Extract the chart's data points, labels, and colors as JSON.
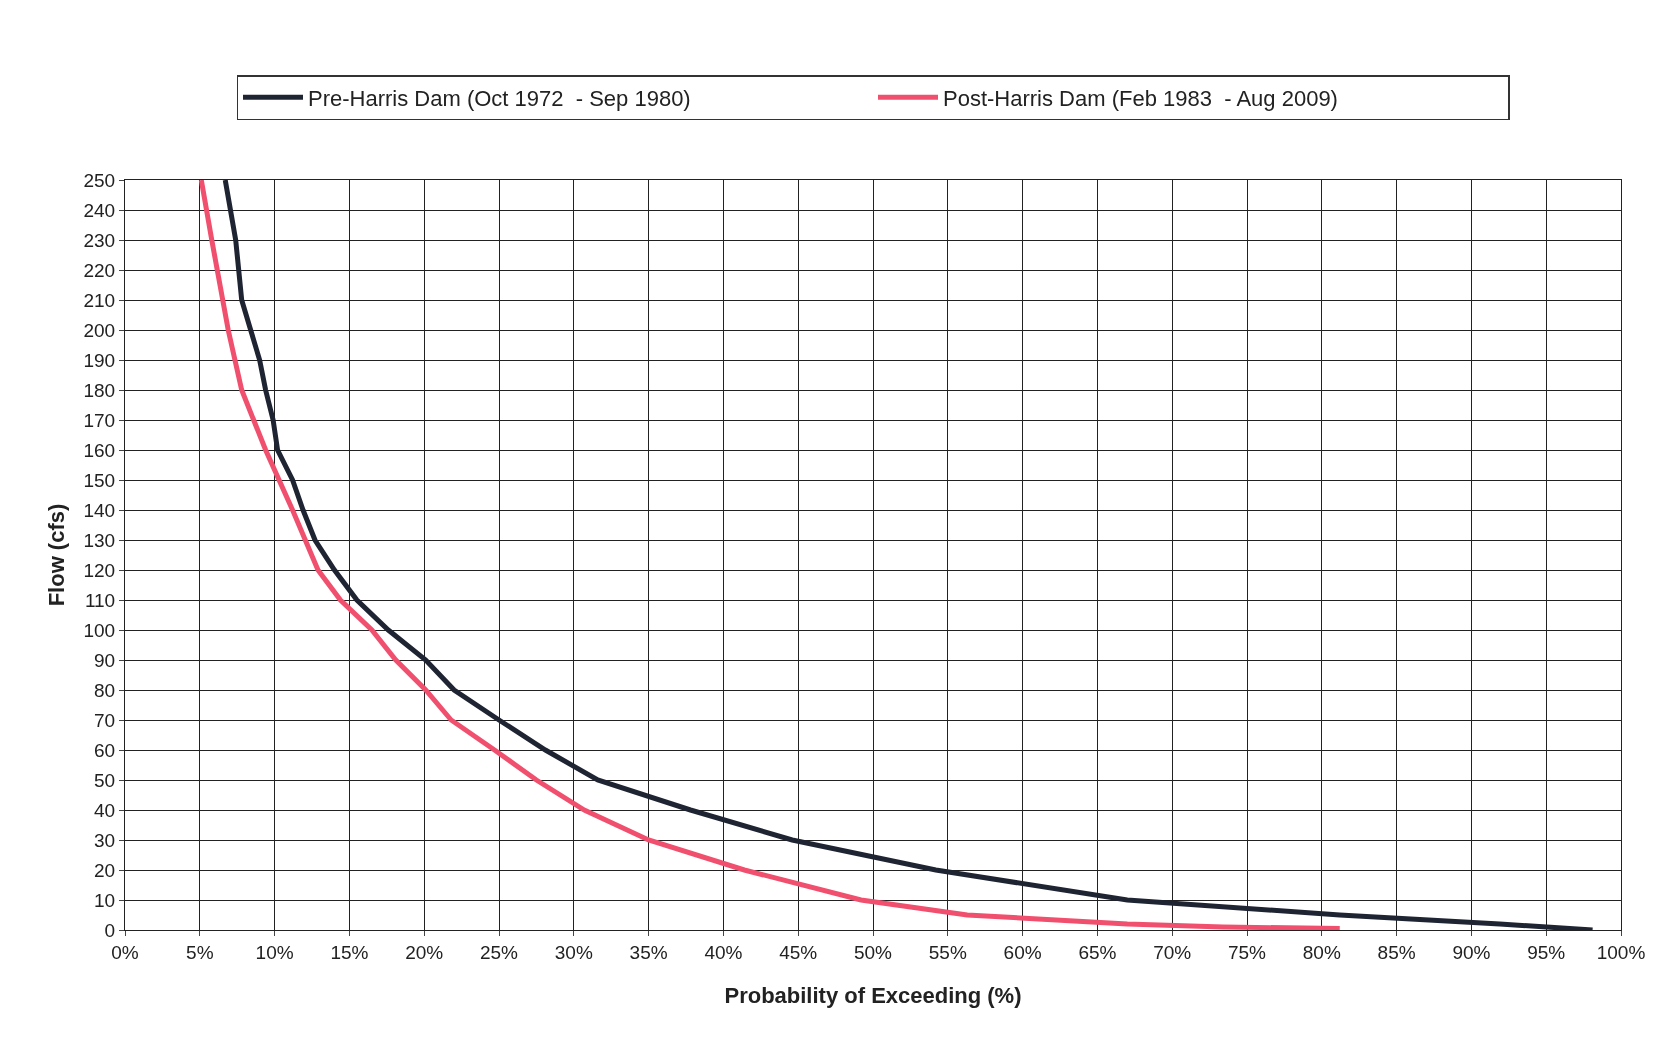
{
  "chart_data": {
    "type": "line",
    "xlabel": "Probability of Exceeding (%)",
    "ylabel": "Flow (cfs)",
    "xlim": [
      0,
      100
    ],
    "xticks": [
      {
        "value": 0,
        "label": "0%"
      },
      {
        "value": 5,
        "label": "5%"
      },
      {
        "value": 10,
        "label": "10%"
      },
      {
        "value": 15,
        "label": "15%"
      },
      {
        "value": 20,
        "label": "20%"
      },
      {
        "value": 25,
        "label": "25%"
      },
      {
        "value": 30,
        "label": "30%"
      },
      {
        "value": 35,
        "label": "35%"
      },
      {
        "value": 40,
        "label": "40%"
      },
      {
        "value": 45,
        "label": "45%"
      },
      {
        "value": 50,
        "label": "50%"
      },
      {
        "value": 55,
        "label": "55%"
      },
      {
        "value": 60,
        "label": "60%"
      },
      {
        "value": 65,
        "label": "65%"
      },
      {
        "value": 70,
        "label": "70%"
      },
      {
        "value": 75,
        "label": "75%"
      },
      {
        "value": 80,
        "label": "80%"
      },
      {
        "value": 85,
        "label": "85%"
      },
      {
        "value": 90,
        "label": "90%"
      },
      {
        "value": 95,
        "label": "95%"
      },
      {
        "value": 100,
        "label": "100%"
      }
    ],
    "ylim": [
      0,
      250
    ],
    "yticks": [
      0,
      10,
      20,
      30,
      40,
      50,
      60,
      70,
      80,
      90,
      100,
      110,
      120,
      130,
      140,
      150,
      160,
      170,
      180,
      190,
      200,
      210,
      220,
      230,
      240,
      250
    ],
    "grid": true,
    "legend": "top",
    "marker": "none",
    "line_style": "solid",
    "series": [
      {
        "name": "Pre-Harris Dam (Oct 1972  - Sep 1980)",
        "color": "#1f2433",
        "x": [
          6.7,
          7.4,
          7.8,
          8.4,
          9.0,
          9.4,
          9.9,
          10.2,
          11.2,
          11.9,
          12.7,
          14.0,
          15.5,
          17.6,
          20.1,
          22.0,
          25.0,
          28.1,
          31.6,
          37.8,
          44.6,
          54.2,
          67.0,
          81.2,
          91.9,
          98.1
        ],
        "values": [
          250,
          230,
          210,
          200,
          190,
          180,
          170,
          160,
          150,
          140,
          130,
          120,
          110,
          100,
          90,
          80,
          70,
          60,
          50,
          40,
          30,
          20,
          10,
          5,
          2,
          0
        ]
      },
      {
        "name": "Post-Harris Dam (Feb 1983  - Aug 2009)",
        "color": "#f0506e",
        "x": [
          5.1,
          5.8,
          6.9,
          7.8,
          9.4,
          11.2,
          12.9,
          14.4,
          16.5,
          18.1,
          20.1,
          21.8,
          24.7,
          27.5,
          30.7,
          35.0,
          41.4,
          49.2,
          56.3,
          67.0,
          73.4,
          81.2
        ],
        "values": [
          250,
          230,
          200,
          180,
          160,
          140,
          120,
          110,
          100,
          90,
          80,
          70,
          60,
          50,
          40,
          30,
          20,
          10,
          5,
          2,
          1,
          0.5
        ]
      }
    ]
  }
}
